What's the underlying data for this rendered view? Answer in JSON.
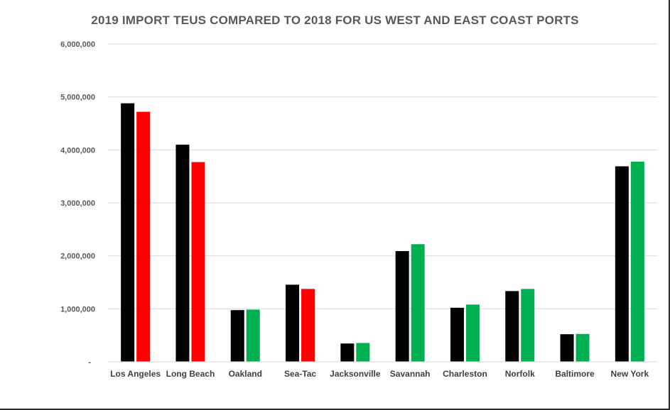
{
  "chart_data": {
    "type": "bar",
    "title": "2019 IMPORT TEUS COMPARED TO 2018 FOR US WEST AND EAST COAST PORTS",
    "xlabel": "",
    "ylabel": "",
    "ylim": [
      0,
      6000000
    ],
    "yticks": [
      0,
      1000000,
      2000000,
      3000000,
      4000000,
      5000000,
      6000000
    ],
    "ytick_labels": [
      "-",
      "1,000,000",
      "2,000,000",
      "3,000,000",
      "4,000,000",
      "5,000,000",
      "6,000,000"
    ],
    "grid": true,
    "legend": "none",
    "categories": [
      "Los Angeles",
      "Long Beach",
      "Oakland",
      "Sea-Tac",
      "Jacksonville",
      "Savannah",
      "Charleston",
      "Norfolk",
      "Baltimore",
      "New York"
    ],
    "series": [
      {
        "values": [
          4880000,
          4100000,
          975000,
          1455000,
          345000,
          2090000,
          1020000,
          1335000,
          520000,
          3690000
        ],
        "colors": [
          "#000000",
          "#000000",
          "#000000",
          "#000000",
          "#000000",
          "#000000",
          "#000000",
          "#000000",
          "#000000",
          "#000000"
        ]
      },
      {
        "values": [
          4720000,
          3770000,
          985000,
          1375000,
          355000,
          2220000,
          1080000,
          1375000,
          525000,
          3780000
        ],
        "colors": [
          "#ff0000",
          "#ff0000",
          "#00b050",
          "#ff0000",
          "#00b050",
          "#00b050",
          "#00b050",
          "#00b050",
          "#00b050",
          "#00b050"
        ]
      }
    ]
  },
  "colors": {
    "decrease": "#ff0000",
    "increase": "#00b050",
    "baseline_2018": "#000000",
    "gridline": "#d9d9d9"
  }
}
